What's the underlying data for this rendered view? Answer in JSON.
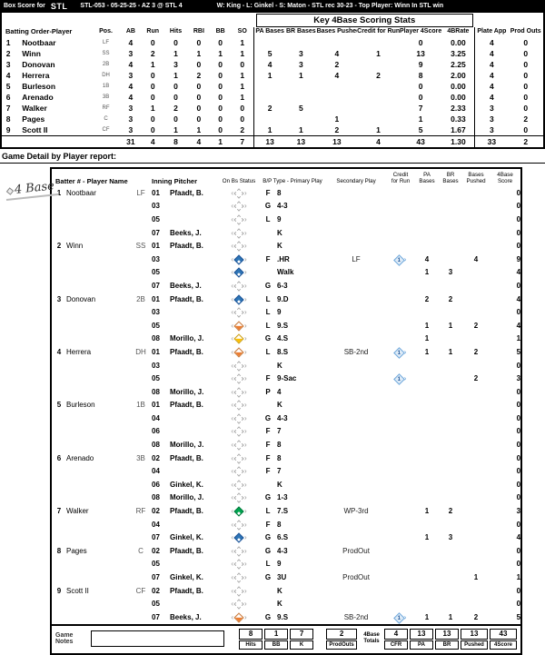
{
  "topbar": {
    "left": "Box Score for",
    "team_logo": "STL",
    "game_id": "STL-053 - 05-25-25 - AZ 3 @ STL 4",
    "result_line": "W: King  -  L:  Ginkel  -  S:  Maton  -  STL rec 30-23 - Top Player: Winn In STL win"
  },
  "box_score": {
    "key_stats_title": "Key 4Base Scoring Stats",
    "columns_left": [
      "Batting Order-Player",
      "Pos.",
      "AB",
      "Run",
      "Hits",
      "RBI",
      "BB",
      "SO"
    ],
    "columns_key": [
      "PA Bases",
      "BR Bases",
      "Bases Pushed",
      "Credit for Run",
      "Player 4Score",
      "4BRate"
    ],
    "columns_right": [
      "Plate App",
      "Prod Outs"
    ],
    "rows": [
      {
        "order": "1",
        "player": "Nootbaar",
        "pos": "LF",
        "ab": "4",
        "run": "0",
        "hits": "0",
        "rbi": "0",
        "bb": "0",
        "so": "1",
        "pa": "",
        "br": "",
        "pushed": "",
        "cfr": "",
        "score": "0",
        "rate": "0.00",
        "plate_app": "4",
        "prod_outs": "0"
      },
      {
        "order": "2",
        "player": "Winn",
        "pos": "SS",
        "ab": "3",
        "run": "2",
        "hits": "1",
        "rbi": "1",
        "bb": "1",
        "so": "1",
        "pa": "5",
        "br": "3",
        "pushed": "4",
        "cfr": "1",
        "score": "13",
        "rate": "3.25",
        "plate_app": "4",
        "prod_outs": "0"
      },
      {
        "order": "3",
        "player": "Donovan",
        "pos": "2B",
        "ab": "4",
        "run": "1",
        "hits": "3",
        "rbi": "0",
        "bb": "0",
        "so": "0",
        "pa": "4",
        "br": "3",
        "pushed": "2",
        "cfr": "",
        "score": "9",
        "rate": "2.25",
        "plate_app": "4",
        "prod_outs": "0"
      },
      {
        "order": "4",
        "player": "Herrera",
        "pos": "DH",
        "ab": "3",
        "run": "0",
        "hits": "1",
        "rbi": "2",
        "bb": "0",
        "so": "1",
        "pa": "1",
        "br": "1",
        "pushed": "4",
        "cfr": "2",
        "score": "8",
        "rate": "2.00",
        "plate_app": "4",
        "prod_outs": "0"
      },
      {
        "order": "5",
        "player": "Burleson",
        "pos": "1B",
        "ab": "4",
        "run": "0",
        "hits": "0",
        "rbi": "0",
        "bb": "0",
        "so": "1",
        "pa": "",
        "br": "",
        "pushed": "",
        "cfr": "",
        "score": "0",
        "rate": "0.00",
        "plate_app": "4",
        "prod_outs": "0"
      },
      {
        "order": "6",
        "player": "Arenado",
        "pos": "3B",
        "ab": "4",
        "run": "0",
        "hits": "0",
        "rbi": "0",
        "bb": "0",
        "so": "1",
        "pa": "",
        "br": "",
        "pushed": "",
        "cfr": "",
        "score": "0",
        "rate": "0.00",
        "plate_app": "4",
        "prod_outs": "0"
      },
      {
        "order": "7",
        "player": "Walker",
        "pos": "RF",
        "ab": "3",
        "run": "1",
        "hits": "2",
        "rbi": "0",
        "bb": "0",
        "so": "0",
        "pa": "2",
        "br": "5",
        "pushed": "",
        "cfr": "",
        "score": "7",
        "rate": "2.33",
        "plate_app": "3",
        "prod_outs": "0"
      },
      {
        "order": "8",
        "player": "Pages",
        "pos": "C",
        "ab": "3",
        "run": "0",
        "hits": "0",
        "rbi": "0",
        "bb": "0",
        "so": "0",
        "pa": "",
        "br": "",
        "pushed": "1",
        "cfr": "",
        "score": "1",
        "rate": "0.33",
        "plate_app": "3",
        "prod_outs": "2"
      },
      {
        "order": "9",
        "player": "Scott II",
        "pos": "CF",
        "ab": "3",
        "run": "0",
        "hits": "1",
        "rbi": "1",
        "bb": "0",
        "so": "2",
        "pa": "1",
        "br": "1",
        "pushed": "2",
        "cfr": "1",
        "score": "5",
        "rate": "1.67",
        "plate_app": "3",
        "prod_outs": "0"
      }
    ],
    "totals": {
      "ab": "31",
      "run": "4",
      "hits": "8",
      "rbi": "4",
      "bb": "1",
      "so": "7",
      "pa": "13",
      "br": "13",
      "pushed": "13",
      "cfr": "4",
      "score": "43",
      "rate": "1.30",
      "plate_app": "33",
      "prod_outs": "2"
    }
  },
  "detail": {
    "title": "Game Detail by Player report:",
    "logo_text": "4 Base",
    "headers": {
      "batter": "Batter # - Player Name",
      "inning_pitcher": "Inning Pitcher",
      "onbs": "On Bs Status",
      "primary": "B/P Type - Primary Play",
      "secondary": "Secondary Play",
      "cfr": "Credit for Run",
      "pa": "PA Bases",
      "br": "BR Bases",
      "pushed": "Bases Pushed",
      "score": "4Base Score"
    },
    "batters": [
      {
        "num": "1",
        "name": "Nootbaar",
        "pos": "LF",
        "rows": [
          {
            "inning": "01",
            "pitcher": "Pfaadt, B.",
            "onbs": "open",
            "bp": "F",
            "play": "8",
            "sec": "",
            "cfr": false,
            "pa": "",
            "br": "",
            "pushed": "",
            "score": "0"
          },
          {
            "inning": "03",
            "pitcher": "",
            "onbs": "open",
            "bp": "G",
            "play": "4-3",
            "sec": "",
            "cfr": false,
            "pa": "",
            "br": "",
            "pushed": "",
            "score": "0"
          },
          {
            "inning": "05",
            "pitcher": "",
            "onbs": "open",
            "bp": "L",
            "play": "9",
            "sec": "",
            "cfr": false,
            "pa": "",
            "br": "",
            "pushed": "",
            "score": "0"
          },
          {
            "inning": "07",
            "pitcher": "Beeks, J.",
            "onbs": "open",
            "bp": "",
            "play": "K",
            "sec": "",
            "cfr": false,
            "pa": "",
            "br": "",
            "pushed": "",
            "score": "0"
          }
        ]
      },
      {
        "num": "2",
        "name": "Winn",
        "pos": "SS",
        "rows": [
          {
            "inning": "01",
            "pitcher": "Pfaadt, B.",
            "onbs": "open",
            "bp": "",
            "play": "K",
            "sec": "",
            "cfr": false,
            "pa": "",
            "br": "",
            "pushed": "",
            "score": "0"
          },
          {
            "inning": "03",
            "pitcher": "",
            "onbs": "blue",
            "bp": "F",
            ".note": "",
            "play": ".HR",
            "sec": "LF",
            "cfr": true,
            "pa": "4",
            "br": "",
            "pushed": "4",
            "score": "9"
          },
          {
            "inning": "05",
            "pitcher": "",
            "onbs": "blue",
            "bp": "",
            "play": "Walk",
            "sec": "",
            "cfr": false,
            "pa": "1",
            "br": "3",
            "pushed": "",
            "score": "4"
          },
          {
            "inning": "07",
            "pitcher": "Beeks, J.",
            "onbs": "open",
            "bp": "G",
            "play": "6-3",
            "sec": "",
            "cfr": false,
            "pa": "",
            "br": "",
            "pushed": "",
            "score": "0"
          }
        ]
      },
      {
        "num": "3",
        "name": "Donovan",
        "pos": "2B",
        "rows": [
          {
            "inning": "01",
            "pitcher": "Pfaadt, B.",
            "onbs": "blue",
            "bp": "L",
            "play": "9.D",
            "sec": "",
            "cfr": false,
            "pa": "2",
            "br": "2",
            "pushed": "",
            "score": "4"
          },
          {
            "inning": "03",
            "pitcher": "",
            "onbs": "open",
            "bp": "L",
            "play": "9",
            "sec": "",
            "cfr": false,
            "pa": "",
            "br": "",
            "pushed": "",
            "score": "0"
          },
          {
            "inning": "05",
            "pitcher": "",
            "onbs": "orange",
            "bp": "L",
            "play": "9.S",
            "sec": "",
            "cfr": false,
            "pa": "1",
            "br": "1",
            "pushed": "2",
            "score": "4"
          },
          {
            "inning": "08",
            "pitcher": "Morillo, J.",
            "onbs": "yellow",
            "bp": "G",
            "play": "4.S",
            "sec": "",
            "cfr": false,
            "pa": "1",
            "br": "",
            "pushed": "",
            "score": "1"
          }
        ]
      },
      {
        "num": "4",
        "name": "Herrera",
        "pos": "DH",
        "rows": [
          {
            "inning": "01",
            "pitcher": "Pfaadt, B.",
            "onbs": "orange",
            "bp": "L",
            "play": "8.S",
            "sec": "SB-2nd",
            "cfr": true,
            "pa": "1",
            "br": "1",
            "pushed": "2",
            "score": "5"
          },
          {
            "inning": "03",
            "pitcher": "",
            "onbs": "open",
            "bp": "",
            "play": "K",
            "sec": "",
            "cfr": false,
            "pa": "",
            "br": "",
            "pushed": "",
            "score": "0"
          },
          {
            "inning": "05",
            "pitcher": "",
            "onbs": "open",
            "bp": "F",
            "play": "9-Sac",
            "sec": "",
            "cfr": true,
            "pa": "",
            "br": "",
            "pushed": "2",
            "score": "3"
          },
          {
            "inning": "08",
            "pitcher": "Morillo, J.",
            "onbs": "open",
            "bp": "P",
            "play": "4",
            "sec": "",
            "cfr": false,
            "pa": "",
            "br": "",
            "pushed": "",
            "score": "0"
          }
        ]
      },
      {
        "num": "5",
        "name": "Burleson",
        "pos": "1B",
        "rows": [
          {
            "inning": "01",
            "pitcher": "Pfaadt, B.",
            "onbs": "open",
            "bp": "",
            "play": "K",
            "sec": "",
            "cfr": false,
            "pa": "",
            "br": "",
            "pushed": "",
            "score": "0"
          },
          {
            "inning": "04",
            "pitcher": "",
            "onbs": "open",
            "bp": "G",
            "play": "4-3",
            "sec": "",
            "cfr": false,
            "pa": "",
            "br": "",
            "pushed": "",
            "score": "0"
          },
          {
            "inning": "06",
            "pitcher": "",
            "onbs": "open",
            "bp": "F",
            "play": "7",
            "sec": "",
            "cfr": false,
            "pa": "",
            "br": "",
            "pushed": "",
            "score": "0"
          },
          {
            "inning": "08",
            "pitcher": "Morillo, J.",
            "onbs": "open",
            "bp": "F",
            "play": "8",
            "sec": "",
            "cfr": false,
            "pa": "",
            "br": "",
            "pushed": "",
            "score": "0"
          }
        ]
      },
      {
        "num": "6",
        "name": "Arenado",
        "pos": "3B",
        "rows": [
          {
            "inning": "02",
            "pitcher": "Pfaadt, B.",
            "onbs": "open",
            "bp": "F",
            "play": "8",
            "sec": "",
            "cfr": false,
            "pa": "",
            "br": "",
            "pushed": "",
            "score": "0"
          },
          {
            "inning": "04",
            "pitcher": "",
            "onbs": "open",
            "bp": "F",
            "play": "7",
            "sec": "",
            "cfr": false,
            "pa": "",
            "br": "",
            "pushed": "",
            "score": "0"
          },
          {
            "inning": "06",
            "pitcher": "Ginkel, K.",
            "onbs": "open",
            "bp": "",
            "play": "K",
            "sec": "",
            "cfr": false,
            "pa": "",
            "br": "",
            "pushed": "",
            "score": "0"
          },
          {
            "inning": "08",
            "pitcher": "Morillo, J.",
            "onbs": "open",
            "bp": "G",
            "play": "1-3",
            "sec": "",
            "cfr": false,
            "pa": "",
            "br": "",
            "pushed": "",
            "score": "0"
          }
        ]
      },
      {
        "num": "7",
        "name": "Walker",
        "pos": "RF",
        "rows": [
          {
            "inning": "02",
            "pitcher": "Pfaadt, B.",
            "onbs": "green",
            "bp": "L",
            "play": "7.S",
            "sec": "WP-3rd",
            "cfr": false,
            "pa": "1",
            "br": "2",
            "pushed": "",
            "score": "3"
          },
          {
            "inning": "04",
            "pitcher": "",
            "onbs": "open",
            "bp": "F",
            "play": "8",
            "sec": "",
            "cfr": false,
            "pa": "",
            "br": "",
            "pushed": "",
            "score": "0"
          },
          {
            "inning": "07",
            "pitcher": "Ginkel, K.",
            "onbs": "blue",
            "bp": "G",
            "play": "6.S",
            "sec": "",
            "cfr": false,
            "pa": "1",
            "br": "3",
            "pushed": "",
            "score": "4"
          }
        ]
      },
      {
        "num": "8",
        "name": "Pages",
        "pos": "C",
        "rows": [
          {
            "inning": "02",
            "pitcher": "Pfaadt, B.",
            "onbs": "open",
            "bp": "G",
            "play": "4-3",
            "sec": "ProdOut",
            "cfr": false,
            "pa": "",
            "br": "",
            "pushed": "",
            "score": "0"
          },
          {
            "inning": "05",
            "pitcher": "",
            "onbs": "open",
            "bp": "L",
            "play": "9",
            "sec": "",
            "cfr": false,
            "pa": "",
            "br": "",
            "pushed": "",
            "score": "0"
          },
          {
            "inning": "07",
            "pitcher": "Ginkel, K.",
            "onbs": "open",
            "bp": "G",
            "play": "3U",
            "sec": "ProdOut",
            "cfr": false,
            "pa": "",
            "br": "",
            "pushed": "1",
            "score": "1"
          }
        ]
      },
      {
        "num": "9",
        "name": "Scott II",
        "pos": "CF",
        "rows": [
          {
            "inning": "02",
            "pitcher": "Pfaadt, B.",
            "onbs": "open",
            "bp": "",
            "play": "K",
            "sec": "",
            "cfr": false,
            "pa": "",
            "br": "",
            "pushed": "",
            "score": "0"
          },
          {
            "inning": "05",
            "pitcher": "",
            "onbs": "open",
            "bp": "",
            "play": "K",
            "sec": "",
            "cfr": false,
            "pa": "",
            "br": "",
            "pushed": "",
            "score": "0"
          },
          {
            "inning": "07",
            "pitcher": "Beeks, J.",
            "onbs": "orange",
            "bp": "G",
            "play": "9.S",
            "sec": "SB-2nd",
            "cfr": true,
            "pa": "1",
            "br": "1",
            "pushed": "2",
            "score": "5"
          }
        ]
      }
    ]
  },
  "footer": {
    "game_notes_label": "Game Notes",
    "notes_value": "",
    "left_stats": [
      {
        "value": "8",
        "label": "Hits"
      },
      {
        "value": "1",
        "label": "BB"
      },
      {
        "value": "7",
        "label": "K"
      }
    ],
    "prodouts": {
      "value": "2",
      "label": "ProdOuts"
    },
    "totals_label_line1": "4Base",
    "totals_label_line2": "Totals",
    "right_stats": [
      {
        "value": "4",
        "label": "CFR"
      },
      {
        "value": "13",
        "label": "PA"
      },
      {
        "value": "13",
        "label": "BR"
      },
      {
        "value": "13",
        "label": "Pushed"
      },
      {
        "value": "43",
        "label": "4Score"
      }
    ]
  },
  "colors": {
    "scored_blue": "#2E75B6",
    "cfr_light_blue": "#DEEBF7",
    "second_base_orange": "#ED7D31",
    "first_base_yellow": "#FFC000",
    "third_base_green": "#00A550",
    "bar_black": "#000000"
  }
}
